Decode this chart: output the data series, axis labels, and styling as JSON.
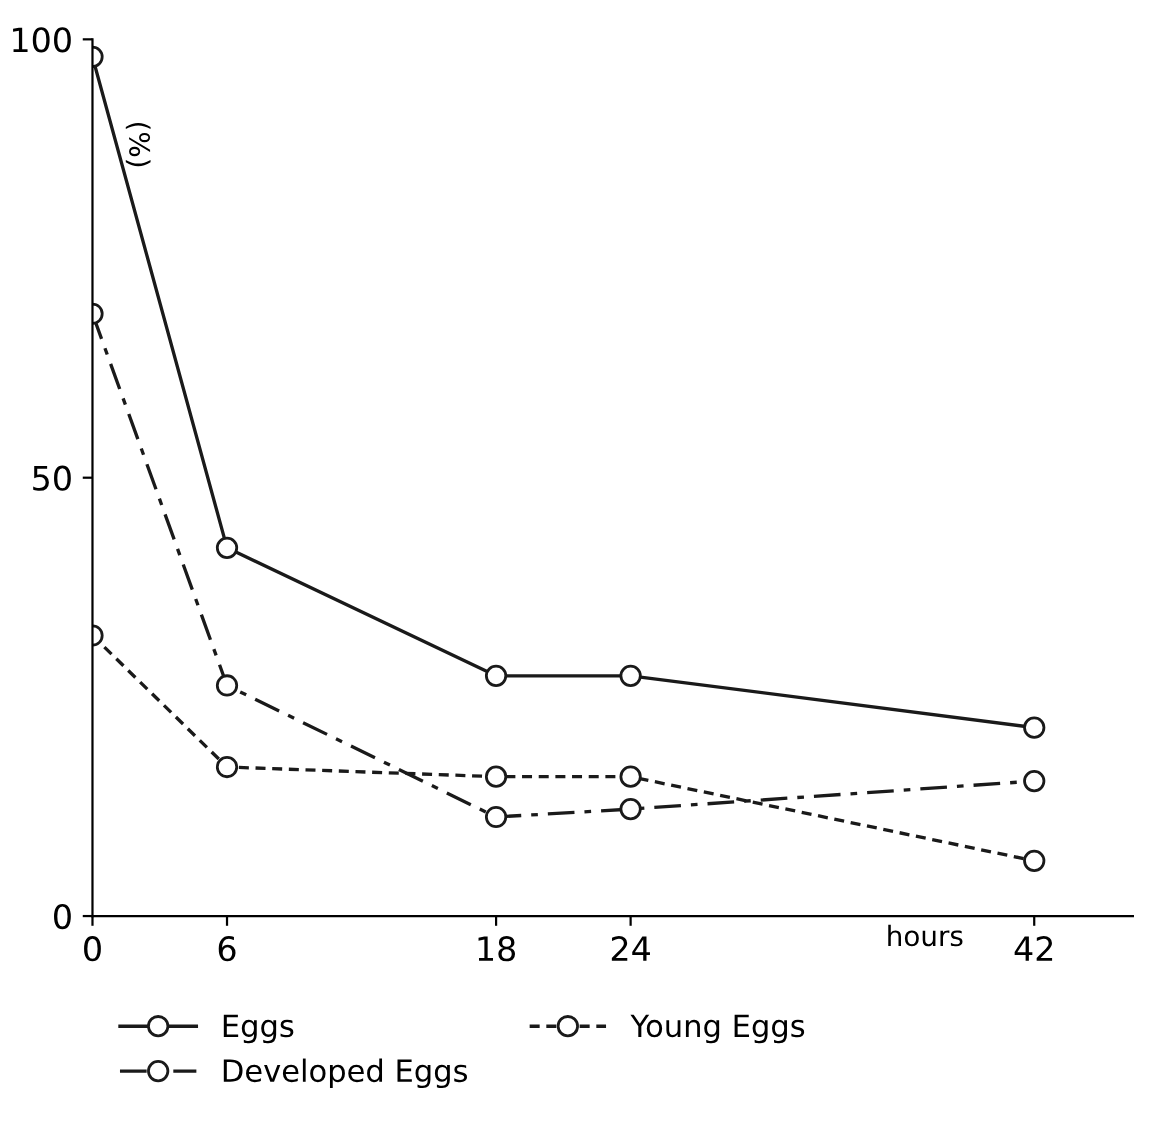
{
  "chart_data": {
    "type": "line",
    "xlabel": "hours",
    "ylabel": "(%)",
    "x": [
      0,
      6,
      18,
      24,
      42
    ],
    "series": [
      {
        "name": "Eggs",
        "color": "#1a1a1a",
        "line_style": "solid",
        "values": [
          98,
          42,
          27.4,
          27.4,
          21.5
        ]
      },
      {
        "name": "Developed Eggs",
        "color": "#1a1a1a",
        "line_style": "dashdot",
        "values": [
          68.7,
          26.3,
          11.3,
          12.2,
          15.4
        ]
      },
      {
        "name": "Young Eggs",
        "color": "#1a1a1a",
        "line_style": "dashed",
        "values": [
          32,
          17,
          15.9,
          15.9,
          6.3
        ]
      }
    ],
    "xlim": [
      0,
      46.4
    ],
    "ylim": [
      0,
      100
    ],
    "xticks": [
      0,
      6,
      18,
      24,
      42
    ],
    "yticks": [
      0,
      50,
      100
    ],
    "marker": "circle",
    "grid": false,
    "legend": "bottom"
  }
}
